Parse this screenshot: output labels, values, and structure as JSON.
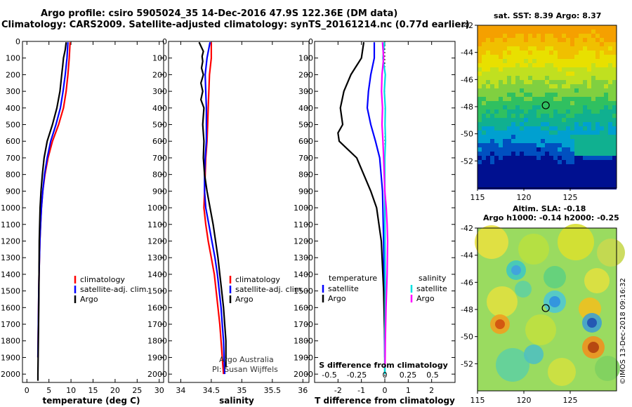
{
  "header": {
    "title_line1": "Argo profile: csiro 5905024_35 14-Dec-2016 47.9S 122.36E (DM data)",
    "title_line2": "Climatology: CARS2009. Satellite-adjusted climatology: synTS_20161214.nc (0.77d earlier)"
  },
  "maps": {
    "sst_title": "sat. SST: 8.39 Argo: 8.37",
    "sla_title_1": "Altim. SLA: -0.18",
    "sla_title_2": "Argo h1000: -0.14 h2000: -0.25",
    "xticks": [
      "115",
      "120",
      "125"
    ],
    "yticks": [
      "-42",
      "-44",
      "-46",
      "-48",
      "-50",
      "-52"
    ],
    "lon_range": [
      115,
      130
    ],
    "lat_range": [
      -54,
      -42
    ],
    "argo_lon": 122.36,
    "argo_lat": -47.9,
    "watermark": "©IMOS 13-Dec-2018 09:16:32"
  },
  "colors": {
    "climatology": "#ff0000",
    "satellite": "#0000ff",
    "argo": "#000000",
    "sal_satellite": "#00e0e0",
    "sal_argo": "#ff00ff"
  },
  "chart_data": [
    {
      "type": "line",
      "panel": "temperature",
      "xlabel": "temperature (deg C)",
      "xlim": [
        -1,
        31
      ],
      "xticks": [
        0,
        5,
        10,
        15,
        20,
        25,
        30
      ],
      "ylim": [
        2050,
        0
      ],
      "yticks": [
        0,
        100,
        200,
        300,
        400,
        500,
        600,
        700,
        800,
        900,
        1000,
        1100,
        1200,
        1300,
        1400,
        1500,
        1600,
        1700,
        1800,
        1900,
        2000
      ],
      "legend": [
        "climatology",
        "satellite-adj. clim.",
        "Argo"
      ],
      "series": [
        {
          "name": "climatology",
          "color": "#ff0000",
          "x": [
            9.8,
            9.6,
            9.3,
            8.9,
            8.3,
            7.2,
            5.8,
            4.8,
            4.1,
            3.6,
            3.3,
            3.1,
            2.95,
            2.85,
            2.75,
            2.7,
            2.65,
            2.6,
            2.55,
            2.5
          ],
          "y": [
            5,
            100,
            200,
            300,
            400,
            500,
            600,
            700,
            800,
            900,
            1000,
            1100,
            1200,
            1300,
            1400,
            1500,
            1600,
            1700,
            1800,
            1900
          ]
        },
        {
          "name": "satellite-adj. clim.",
          "color": "#0000ff",
          "x": [
            9.3,
            9.1,
            8.7,
            8.2,
            7.6,
            6.6,
            5.4,
            4.6,
            4.0,
            3.6,
            3.3,
            3.1,
            2.95,
            2.85,
            2.75,
            2.7,
            2.65,
            2.6,
            2.55,
            2.5
          ],
          "y": [
            5,
            100,
            200,
            300,
            400,
            500,
            600,
            700,
            800,
            900,
            1000,
            1100,
            1200,
            1300,
            1400,
            1500,
            1600,
            1700,
            1800,
            1900
          ]
        },
        {
          "name": "Argo",
          "color": "#000000",
          "x": [
            8.9,
            8.7,
            8.3,
            8.1,
            7.9,
            7.5,
            6.8,
            5.8,
            4.6,
            3.9,
            3.5,
            3.2,
            3.0,
            2.9,
            2.8,
            2.75,
            2.7,
            2.6,
            2.55,
            2.5,
            2.5
          ],
          "y": [
            5,
            50,
            100,
            150,
            200,
            300,
            400,
            500,
            600,
            700,
            800,
            900,
            1000,
            1100,
            1200,
            1400,
            1600,
            1800,
            1900,
            2000,
            2040
          ]
        }
      ]
    },
    {
      "type": "line",
      "panel": "salinity",
      "xlabel": "salinity",
      "xlim": [
        33.8,
        36.1
      ],
      "xticks": [
        34,
        34.5,
        35,
        35.5,
        36
      ],
      "xticklabels": [
        "34",
        "34.5",
        "35",
        "35.5",
        "36"
      ],
      "ylim": [
        2050,
        0
      ],
      "legend": [
        "climatology",
        "satellite-adj. clim.",
        "Argo"
      ],
      "annotations": [
        "Argo Australia",
        "PI: Susan Wijffels"
      ],
      "series": [
        {
          "name": "climatology",
          "color": "#ff0000",
          "x": [
            34.5,
            34.5,
            34.47,
            34.46,
            34.45,
            34.44,
            34.43,
            34.41,
            34.4,
            34.39,
            34.38,
            34.41,
            34.45,
            34.5,
            34.55,
            34.58,
            34.61,
            34.64,
            34.66,
            34.68,
            34.7
          ],
          "y": [
            5,
            100,
            200,
            300,
            400,
            500,
            600,
            700,
            800,
            900,
            1000,
            1100,
            1200,
            1300,
            1400,
            1500,
            1600,
            1700,
            1800,
            1900,
            2000
          ]
        },
        {
          "name": "satellite-adj. clim.",
          "color": "#0000ff",
          "x": [
            34.48,
            34.43,
            34.4,
            34.41,
            34.42,
            34.42,
            34.42,
            34.4,
            34.39,
            34.39,
            34.41,
            34.46,
            34.51,
            34.56,
            34.6,
            34.63,
            34.66,
            34.68,
            34.7,
            34.71,
            34.72
          ],
          "y": [
            5,
            100,
            200,
            300,
            400,
            500,
            600,
            700,
            800,
            900,
            1000,
            1100,
            1200,
            1300,
            1400,
            1500,
            1600,
            1700,
            1800,
            1900,
            2000
          ]
        },
        {
          "name": "Argo",
          "color": "#000000",
          "x": [
            34.3,
            34.37,
            34.35,
            34.36,
            34.34,
            34.37,
            34.33,
            34.36,
            34.33,
            34.38,
            34.36,
            34.38,
            34.37,
            34.39,
            34.43,
            34.48,
            34.53,
            34.57,
            34.61,
            34.64,
            34.67,
            34.7,
            34.72,
            34.74,
            34.74
          ],
          "y": [
            5,
            60,
            90,
            120,
            160,
            200,
            250,
            300,
            350,
            400,
            500,
            600,
            700,
            800,
            900,
            1000,
            1100,
            1200,
            1300,
            1400,
            1500,
            1600,
            1700,
            1800,
            1960
          ]
        }
      ]
    },
    {
      "type": "line",
      "panel": "differences",
      "xlabel": "T difference from climatology",
      "xlabel_top": "S difference from climatology",
      "xlim": [
        -3,
        3
      ],
      "xticks": [
        -2,
        -1,
        0,
        1,
        2
      ],
      "sticks": [
        "-0.5",
        "-0.25",
        "0",
        "0.25",
        "0.5"
      ],
      "ylim": [
        2050,
        0
      ],
      "legend_left_title": "temperature",
      "legend_right_title": "salinity",
      "legend_left": [
        "satellite",
        "Argo"
      ],
      "legend_right": [
        "satellite",
        "Argo"
      ],
      "series": [
        {
          "name": "temperature satellite",
          "color": "#0000ff",
          "x": [
            -0.45,
            -0.45,
            -0.6,
            -0.7,
            -0.75,
            -0.6,
            -0.4,
            -0.22,
            -0.1,
            -0.05,
            -0.02,
            0
          ],
          "y": [
            5,
            100,
            200,
            300,
            400,
            500,
            600,
            700,
            900,
            1200,
            1600,
            1900
          ]
        },
        {
          "name": "temperature Argo",
          "color": "#000000",
          "x": [
            -0.9,
            -1.0,
            -1.45,
            -1.75,
            -1.9,
            -1.8,
            -2.0,
            -1.95,
            -1.2,
            -0.6,
            -0.35,
            -0.15,
            -0.05,
            0,
            0
          ],
          "y": [
            5,
            100,
            200,
            300,
            400,
            500,
            550,
            600,
            700,
            900,
            1000,
            1200,
            1500,
            1800,
            2000
          ]
        },
        {
          "name": "salinity satellite",
          "color": "#00e0e0",
          "x": [
            -0.02,
            -0.08,
            0.02,
            -0.02,
            0.02,
            0.01,
            0.03,
            0.0,
            0.0,
            0.01,
            0.02,
            0.01,
            0.0,
            0.0
          ],
          "y": [
            5,
            100,
            200,
            300,
            400,
            500,
            600,
            700,
            900,
            1200,
            1500,
            1700,
            1900,
            2000
          ]
        },
        {
          "name": "salinity Argo",
          "color": "#ff00ff",
          "x": [
            -0.1,
            -0.05,
            -0.12,
            -0.14,
            -0.1,
            -0.12,
            -0.08,
            -0.05,
            0.0,
            0.06,
            0.1,
            0.12,
            0.1,
            0.05,
            0.02,
            0.01
          ],
          "y": [
            5,
            100,
            200,
            300,
            400,
            500,
            600,
            700,
            900,
            1000,
            1100,
            1200,
            1400,
            1600,
            1800,
            1960
          ]
        }
      ]
    }
  ]
}
